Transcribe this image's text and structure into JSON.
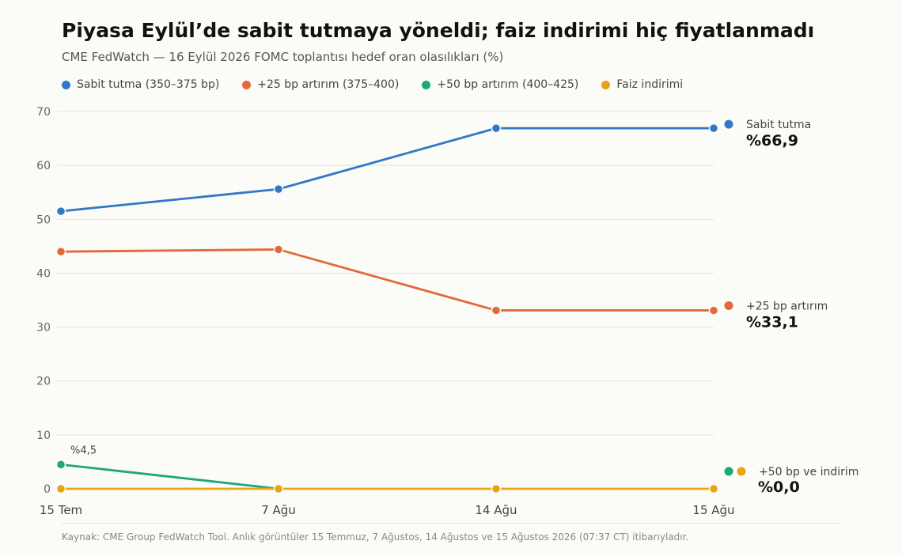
{
  "title": "Piyasa Eylül’de sabit tutmaya yöneldi; faiz indirimi hiç fiyatlanmadı",
  "subtitle": "CME FedWatch — 16 Eylül 2026 FOMC toplantısı hedef oran olasılıkları (%)",
  "legend": [
    {
      "label": "Sabit tutma (350–375 bp)",
      "color": "#3178c6"
    },
    {
      "label": "+25 bp artırım (375–400)",
      "color": "#e06a3b"
    },
    {
      "label": "+50 bp artırım (400–425)",
      "color": "#1fa67a"
    },
    {
      "label": "Faiz indirimi",
      "color": "#e8a317"
    }
  ],
  "end_labels": {
    "hold": {
      "name": "Sabit tutma",
      "value": "%66,9"
    },
    "hike25": {
      "name": "+25 bp artırım",
      "value": "%33,1"
    },
    "other": {
      "name": "+50 bp ve indirim",
      "value": "%0,0"
    }
  },
  "annotation": "%4,5",
  "footer": "Kaynak: CME Group FedWatch Tool. Anlık görüntüler 15 Temmuz, 7 Ağustos, 14 Ağustos ve 15 Ağustos 2026 (07:37 CT) itibarıyladır.",
  "chart_data": {
    "type": "line",
    "x": [
      "15 Tem",
      "7 Ağu",
      "14 Ağu",
      "15 Ağu"
    ],
    "ylim": [
      0,
      70
    ],
    "yticks": [
      0,
      10,
      20,
      30,
      40,
      50,
      60,
      70
    ],
    "grid": true,
    "legend_position": "top",
    "series": [
      {
        "name": "Sabit tutma (350–375 bp)",
        "color": "#3178c6",
        "values": [
          51.5,
          55.6,
          66.9,
          66.9
        ]
      },
      {
        "name": "+25 bp artırım (375–400)",
        "color": "#e06a3b",
        "values": [
          44.0,
          44.4,
          33.1,
          33.1
        ]
      },
      {
        "name": "+50 bp artırım (400–425)",
        "color": "#1fa67a",
        "values": [
          4.5,
          0.0,
          0.0,
          0.0
        ]
      },
      {
        "name": "Faiz indirimi",
        "color": "#e8a317",
        "values": [
          0.0,
          0.0,
          0.0,
          0.0
        ]
      }
    ]
  }
}
